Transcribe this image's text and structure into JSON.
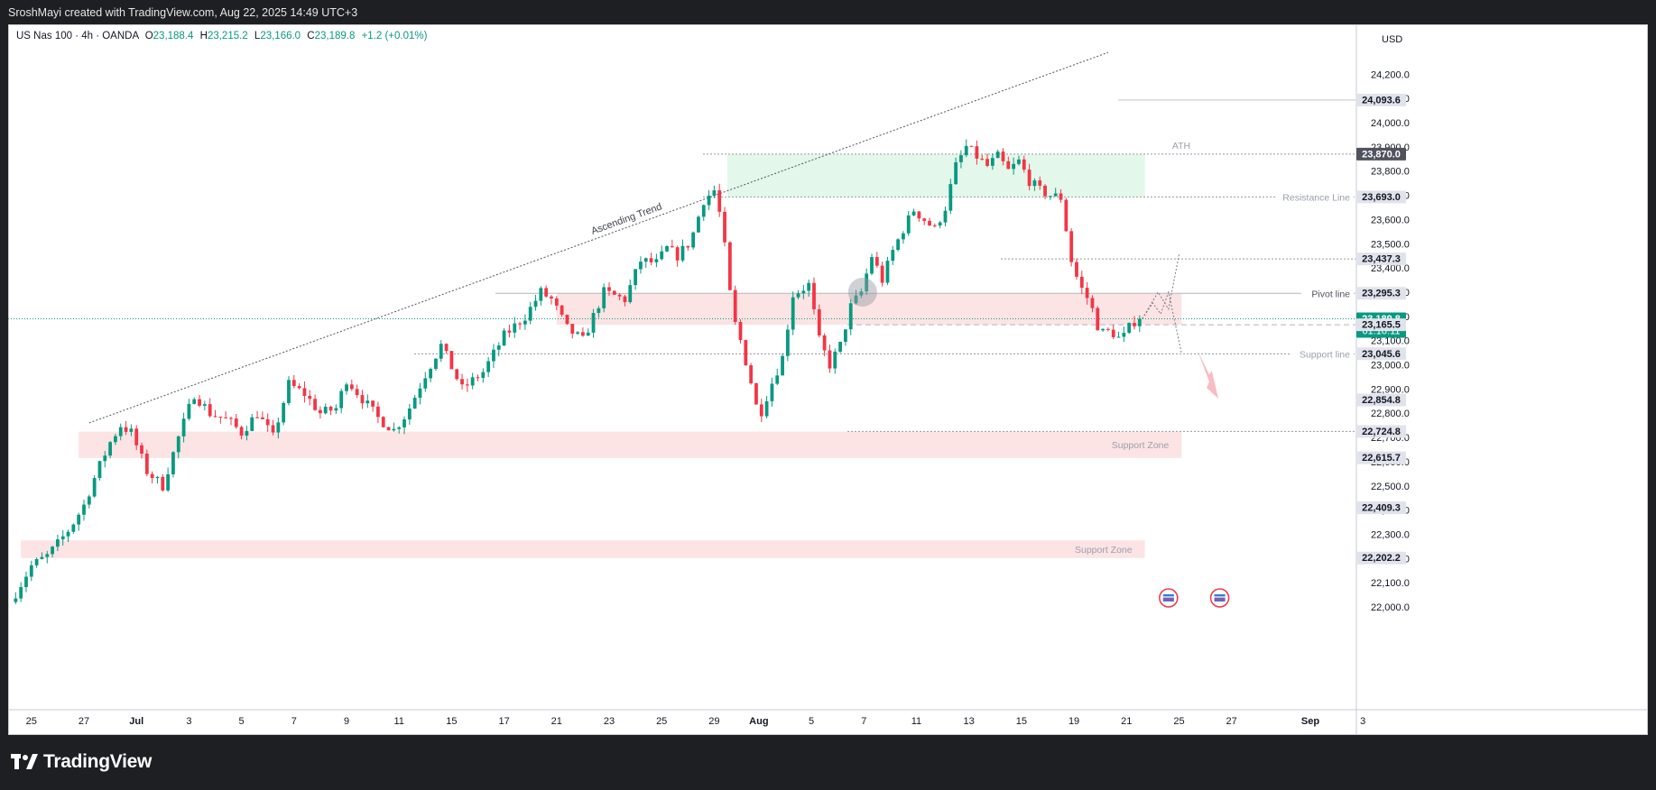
{
  "header": {
    "caption": "SroshMayi created with TradingView.com, Aug 22, 2025 14:49 UTC+3"
  },
  "legend": {
    "symbol": "US Nas 100 · 4h · OANDA",
    "o_label": "O",
    "o": "23,188.4",
    "h_label": "H",
    "h": "23,215.2",
    "l_label": "L",
    "l": "23,166.0",
    "c_label": "C",
    "c": "23,189.8",
    "change": "+1.2 (+0.01%)"
  },
  "footer": {
    "brand": "TradingView"
  },
  "colors": {
    "up": "#089981",
    "down": "#f23645",
    "zone_red": "#fce4e4",
    "zone_green": "#e3f8ea"
  },
  "chart_data": {
    "type": "candlestick",
    "instrument": "US Nas 100",
    "interval": "4h",
    "currency": "USD",
    "ylim": [
      21980,
      24300
    ],
    "y_ticks": [
      22000,
      22100,
      22200,
      22300,
      22400,
      22500,
      22600,
      22700,
      22800,
      22900,
      23000,
      23100,
      23200,
      23300,
      23400,
      23500,
      23600,
      23700,
      23800,
      23900,
      24000,
      24100,
      24200
    ],
    "y_tick_labels": [
      "22,000.0",
      "22,100.0",
      "22,200.0",
      "22,300.0",
      "22,400.0",
      "22,500.0",
      "22,600.0",
      "22,700.0",
      "22,800.0",
      "22,900.0",
      "23,000.0",
      "23,100.0",
      "23,200.0",
      "23,300.0",
      "23,400.0",
      "23,500.0",
      "23,600.0",
      "23,700.0",
      "23,800.0",
      "23,900.0",
      "24,000.0",
      "24,100.0",
      "24,200.0"
    ],
    "x_ticks": [
      {
        "day": 0,
        "label": "25"
      },
      {
        "day": 2,
        "label": "27"
      },
      {
        "day": 4,
        "label": "Jul"
      },
      {
        "day": 6,
        "label": "3"
      },
      {
        "day": 8,
        "label": "5"
      },
      {
        "day": 10,
        "label": "7"
      },
      {
        "day": 12,
        "label": "9"
      },
      {
        "day": 14,
        "label": "11"
      },
      {
        "day": 16,
        "label": "15"
      },
      {
        "day": 18,
        "label": "17"
      },
      {
        "day": 20,
        "label": "21"
      },
      {
        "day": 22,
        "label": "23"
      },
      {
        "day": 24,
        "label": "25"
      },
      {
        "day": 26,
        "label": "29"
      },
      {
        "day": 27.7,
        "label": "Aug"
      },
      {
        "day": 29.7,
        "label": "5"
      },
      {
        "day": 31.7,
        "label": "7"
      },
      {
        "day": 33.7,
        "label": "11"
      },
      {
        "day": 35.7,
        "label": "13"
      },
      {
        "day": 37.7,
        "label": "15"
      },
      {
        "day": 39.7,
        "label": "19"
      },
      {
        "day": 41.7,
        "label": "21"
      },
      {
        "day": 43.7,
        "label": "25"
      },
      {
        "day": 45.7,
        "label": "27"
      },
      {
        "day": 48.7,
        "label": "Sep"
      },
      {
        "day": 50.7,
        "label": "3"
      }
    ],
    "price_path": [
      [
        -0.8,
        22020
      ],
      [
        0,
        22170
      ],
      [
        0.6,
        22210
      ],
      [
        1,
        22260
      ],
      [
        1.5,
        22330
      ],
      [
        2,
        22420
      ],
      [
        2.5,
        22560
      ],
      [
        3,
        22680
      ],
      [
        3.4,
        22750
      ],
      [
        3.8,
        22720
      ],
      [
        4.4,
        22560
      ],
      [
        5,
        22500
      ],
      [
        5.6,
        22700
      ],
      [
        6.2,
        22880
      ],
      [
        6.8,
        22800
      ],
      [
        7.5,
        22770
      ],
      [
        8,
        22720
      ],
      [
        8.6,
        22800
      ],
      [
        9.2,
        22700
      ],
      [
        9.8,
        22920
      ],
      [
        10.4,
        22880
      ],
      [
        11,
        22800
      ],
      [
        11.6,
        22820
      ],
      [
        12,
        22940
      ],
      [
        12.6,
        22860
      ],
      [
        13.2,
        22780
      ],
      [
        13.8,
        22730
      ],
      [
        14.3,
        22800
      ],
      [
        15,
        22960
      ],
      [
        15.6,
        23080
      ],
      [
        16.4,
        22900
      ],
      [
        17.2,
        22970
      ],
      [
        18,
        23120
      ],
      [
        18.8,
        23200
      ],
      [
        19.4,
        23300
      ],
      [
        19.8,
        23270
      ],
      [
        20.4,
        23150
      ],
      [
        21,
        23100
      ],
      [
        21.8,
        23300
      ],
      [
        22.6,
        23270
      ],
      [
        23.2,
        23430
      ],
      [
        23.8,
        23420
      ],
      [
        24.2,
        23480
      ],
      [
        24.6,
        23450
      ],
      [
        25.1,
        23510
      ],
      [
        25.6,
        23680
      ],
      [
        26,
        23720
      ],
      [
        26.3,
        23580
      ],
      [
        26.7,
        23200
      ],
      [
        27,
        23100
      ],
      [
        27.4,
        22930
      ],
      [
        27.7,
        22780
      ],
      [
        28.1,
        22900
      ],
      [
        28.6,
        23030
      ],
      [
        29,
        23290
      ],
      [
        29.6,
        23330
      ],
      [
        30,
        23100
      ],
      [
        30.4,
        23000
      ],
      [
        30.8,
        23080
      ],
      [
        31.2,
        23240
      ],
      [
        31.6,
        23300
      ],
      [
        32,
        23450
      ],
      [
        32.4,
        23350
      ],
      [
        32.8,
        23470
      ],
      [
        33.2,
        23560
      ],
      [
        33.6,
        23640
      ],
      [
        34,
        23600
      ],
      [
        34.4,
        23560
      ],
      [
        34.8,
        23650
      ],
      [
        35.2,
        23820
      ],
      [
        35.6,
        23900
      ],
      [
        36,
        23860
      ],
      [
        36.4,
        23820
      ],
      [
        36.8,
        23860
      ],
      [
        37.2,
        23800
      ],
      [
        37.6,
        23840
      ],
      [
        38,
        23760
      ],
      [
        38.4,
        23720
      ],
      [
        38.8,
        23700
      ],
      [
        39.2,
        23690
      ],
      [
        39.6,
        23430
      ],
      [
        39.9,
        23330
      ],
      [
        40.3,
        23260
      ],
      [
        40.7,
        23130
      ],
      [
        41.1,
        23140
      ],
      [
        41.5,
        23100
      ],
      [
        41.9,
        23170
      ],
      [
        42.2,
        23200
      ]
    ],
    "horizontal_levels": [
      {
        "label": "ATH",
        "price": 23870
      },
      {
        "label": "Resistance Line",
        "price": 23693
      },
      {
        "label": "Pivot line",
        "price": 23295
      },
      {
        "label": "Support line",
        "price": 23045
      },
      {
        "label": "",
        "price": 24093.6
      },
      {
        "label": "",
        "price": 23437.3
      },
      {
        "label": "",
        "price": 22724.8
      }
    ],
    "zones": [
      {
        "label": "",
        "color": "green",
        "from_day": 26.5,
        "to_day": 42.4,
        "low": 23693,
        "high": 23870
      },
      {
        "label": "",
        "color": "red",
        "from_day": 20,
        "to_day": 43.8,
        "low": 23165,
        "high": 23295
      },
      {
        "label": "Support Zone",
        "color": "red",
        "from_day": 1.8,
        "to_day": 43.8,
        "low": 22615,
        "high": 22724
      },
      {
        "label": "Support Zone",
        "color": "red",
        "from_day": -0.4,
        "to_day": 42.4,
        "low": 22202,
        "high": 22275
      }
    ],
    "trendline": {
      "label": "Ascending Trend",
      "from": [
        2.2,
        22760
      ],
      "to": [
        41,
        24290
      ]
    },
    "price_tags": [
      {
        "value": "24,093.6",
        "price": 24093.6,
        "kind": "level"
      },
      {
        "value": "23,870.0",
        "price": 23870,
        "kind": "dark"
      },
      {
        "value": "23,693.0",
        "price": 23693,
        "kind": "level"
      },
      {
        "value": "23,437.3",
        "price": 23437.3,
        "kind": "level"
      },
      {
        "value": "23,295.3",
        "price": 23295.3,
        "kind": "level"
      },
      {
        "value": "23,189.8",
        "price": 23189.8,
        "kind": "current",
        "countdown": "01:10:11"
      },
      {
        "value": "23,165.5",
        "price": 23165.5,
        "kind": "level"
      },
      {
        "value": "23,045.6",
        "price": 23045.6,
        "kind": "level"
      },
      {
        "value": "22,854.8",
        "price": 22854.8,
        "kind": "level"
      },
      {
        "value": "22,724.8",
        "price": 22724.8,
        "kind": "level"
      },
      {
        "value": "22,615.7",
        "price": 22615.7,
        "kind": "level"
      },
      {
        "value": "22,409.3",
        "price": 22409.3,
        "kind": "level"
      },
      {
        "value": "22,202.2",
        "price": 22202.2,
        "kind": "level"
      }
    ]
  }
}
